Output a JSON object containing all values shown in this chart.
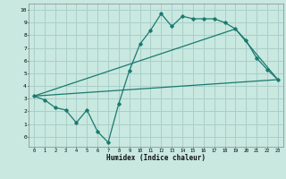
{
  "xlabel": "Humidex (Indice chaleur)",
  "bg_color": "#c8e8e0",
  "grid_color": "#aacfca",
  "line_color": "#1a7a6e",
  "xlim": [
    -0.5,
    23.5
  ],
  "ylim": [
    -0.8,
    10.5
  ],
  "xticks": [
    0,
    1,
    2,
    3,
    4,
    5,
    6,
    7,
    8,
    9,
    10,
    11,
    12,
    13,
    14,
    15,
    16,
    17,
    18,
    19,
    20,
    21,
    22,
    23
  ],
  "yticks": [
    0,
    1,
    2,
    3,
    4,
    5,
    6,
    7,
    8,
    9,
    10
  ],
  "line1_x": [
    0,
    1,
    2,
    3,
    4,
    5,
    6,
    7,
    8,
    9,
    10,
    11,
    12,
    13,
    14,
    15,
    16,
    17,
    18,
    19,
    20,
    21,
    22,
    23
  ],
  "line1_y": [
    3.2,
    2.9,
    2.3,
    2.1,
    1.1,
    2.1,
    0.4,
    -0.45,
    2.6,
    5.2,
    7.3,
    8.4,
    9.7,
    8.7,
    9.5,
    9.3,
    9.3,
    9.3,
    9.0,
    8.5,
    7.6,
    6.2,
    5.3,
    4.5
  ],
  "line2_x": [
    0,
    19,
    23
  ],
  "line2_y": [
    3.2,
    8.5,
    4.5
  ],
  "line3_x": [
    0,
    23
  ],
  "line3_y": [
    3.2,
    4.5
  ]
}
